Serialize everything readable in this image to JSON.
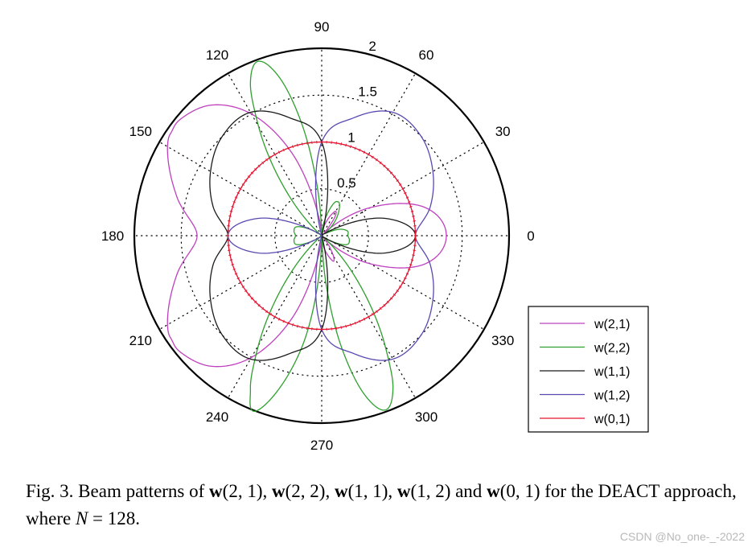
{
  "chart_data": {
    "type": "polar",
    "title": "",
    "r_max": 2,
    "radial_ticks": [
      {
        "value": 0.5,
        "label": "0.5"
      },
      {
        "value": 1.0,
        "label": "1"
      },
      {
        "value": 1.5,
        "label": "1.5"
      },
      {
        "value": 2.0,
        "label": "2"
      }
    ],
    "angular_ticks": [
      0,
      30,
      60,
      90,
      120,
      150,
      180,
      210,
      240,
      270,
      300,
      330
    ],
    "angular_tick_labels": [
      "0",
      "30",
      "60",
      "90",
      "120",
      "150",
      "180",
      "210",
      "240",
      "270",
      "300",
      "330"
    ],
    "grid": true,
    "legend_position": "bottom-right",
    "series": [
      {
        "name": "w(2,1)",
        "color": "#bf40bf",
        "angles": [
          0,
          15,
          30,
          45,
          55,
          60,
          65,
          75,
          85,
          90,
          100,
          110,
          120,
          130,
          140,
          145,
          150,
          165,
          180,
          195,
          210,
          215,
          220,
          230,
          240,
          250,
          260,
          270,
          275,
          280,
          290,
          295,
          300,
          305,
          315,
          330,
          345,
          360
        ],
        "r": [
          1.33,
          1.15,
          0.6,
          0.05,
          0.25,
          0.3,
          0.25,
          0.12,
          0.05,
          0.0,
          0.25,
          0.95,
          1.5,
          1.82,
          1.95,
          1.95,
          1.9,
          1.6,
          1.33,
          1.6,
          1.9,
          1.95,
          1.95,
          1.82,
          1.5,
          0.95,
          0.25,
          0.0,
          0.05,
          0.12,
          0.25,
          0.3,
          0.25,
          0.15,
          0.05,
          0.6,
          1.15,
          1.33
        ]
      },
      {
        "name": "w(2,2)",
        "color": "#2ea02e",
        "angles": [
          0,
          10,
          20,
          30,
          40,
          50,
          60,
          65,
          70,
          80,
          90,
          95,
          100,
          105,
          110,
          115,
          120,
          130,
          140,
          150,
          160,
          170,
          180,
          190,
          200,
          210,
          220,
          230,
          240,
          245,
          250,
          260,
          270,
          275,
          280,
          285,
          290,
          295,
          300,
          310,
          320,
          330,
          340,
          350,
          360
        ],
        "r": [
          0.28,
          0.28,
          0.2,
          0.05,
          0.1,
          0.25,
          0.38,
          0.4,
          0.36,
          0.15,
          0.0,
          0.5,
          1.2,
          1.75,
          1.98,
          1.8,
          1.35,
          0.5,
          0.0,
          0.12,
          0.28,
          0.3,
          0.28,
          0.3,
          0.28,
          0.12,
          0.0,
          0.5,
          1.35,
          1.8,
          1.98,
          1.2,
          0.0,
          0.5,
          1.2,
          1.75,
          1.98,
          1.8,
          1.35,
          0.5,
          0.0,
          0.12,
          0.28,
          0.3,
          0.28
        ]
      },
      {
        "name": "w(1,1)",
        "color": "#1a1a1a",
        "angles": [
          0,
          15,
          30,
          45,
          60,
          75,
          90,
          105,
          120,
          135,
          150,
          165,
          180,
          195,
          210,
          225,
          240,
          255,
          270,
          285,
          300,
          315,
          330,
          345,
          360
        ],
        "r": [
          1.0,
          0.71,
          0.12,
          0.02,
          0.02,
          0.02,
          1.0,
          1.3,
          1.52,
          1.5,
          1.37,
          1.2,
          1.0,
          1.2,
          1.37,
          1.5,
          1.52,
          1.3,
          1.0,
          0.02,
          0.02,
          0.02,
          0.12,
          0.71,
          1.0
        ]
      },
      {
        "name": "w(1,2)",
        "color": "#5a48b0",
        "angles": [
          0,
          15,
          30,
          45,
          60,
          75,
          90,
          105,
          120,
          135,
          150,
          165,
          180,
          195,
          210,
          225,
          240,
          255,
          270,
          285,
          300,
          315,
          330,
          345,
          360
        ],
        "r": [
          1.0,
          1.2,
          1.37,
          1.5,
          1.52,
          1.3,
          1.0,
          0.02,
          0.02,
          0.02,
          0.12,
          0.71,
          1.0,
          0.71,
          0.12,
          0.02,
          0.02,
          0.02,
          1.0,
          1.3,
          1.52,
          1.5,
          1.37,
          1.2,
          1.0
        ]
      },
      {
        "name": "w(0,1)",
        "color": "#e8112d",
        "angles": [
          0,
          30,
          60,
          90,
          120,
          150,
          180,
          210,
          240,
          270,
          300,
          330,
          360
        ],
        "r": [
          1.0,
          1.0,
          1.0,
          1.0,
          1.0,
          1.0,
          1.0,
          1.0,
          1.0,
          1.0,
          1.0,
          1.0,
          1.0
        ]
      }
    ]
  },
  "caption": {
    "prefix": "Fig. 3.  Beam patterns of ",
    "w1_vec": "w",
    "w1_args": "(2, 1), ",
    "w2_vec": "w",
    "w2_args": "(2, 2), ",
    "w3_vec": "w",
    "w3_args": "(1, 1), ",
    "w4_vec": "w",
    "w4_args": "(1, 2) and ",
    "w5_vec": "w",
    "w5_args": "(0, 1) for the DEACT approach, where ",
    "n_var": "N",
    "suffix": " = 128."
  },
  "watermark": "CSDN @No_one-_-2022"
}
